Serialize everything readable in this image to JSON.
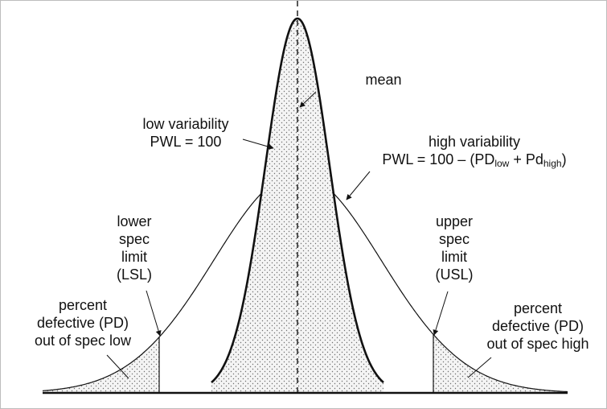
{
  "diagram": {
    "labels": {
      "mean": "mean",
      "low_variability": [
        "low variability",
        "PWL = 100"
      ],
      "high_variability_title": "high variability",
      "high_variability_formula": {
        "prefix": "PWL = 100 – (PD",
        "sub1": "low",
        "middle": " + Pd",
        "sub2": "high",
        "suffix": ")"
      },
      "lsl": [
        "lower",
        "spec",
        "limit",
        "(LSL)"
      ],
      "usl": [
        "upper",
        "spec",
        "limit",
        "(USL)"
      ],
      "pd_low": [
        "percent",
        "defective (PD)",
        "out of spec low"
      ],
      "pd_high": [
        "percent",
        "defective (PD)",
        "out of spec high"
      ]
    },
    "colors": {
      "line": "#111111",
      "fill": "#f4f4f4",
      "dots": "#6f6f6f",
      "frame": "#bdbdbd"
    }
  }
}
